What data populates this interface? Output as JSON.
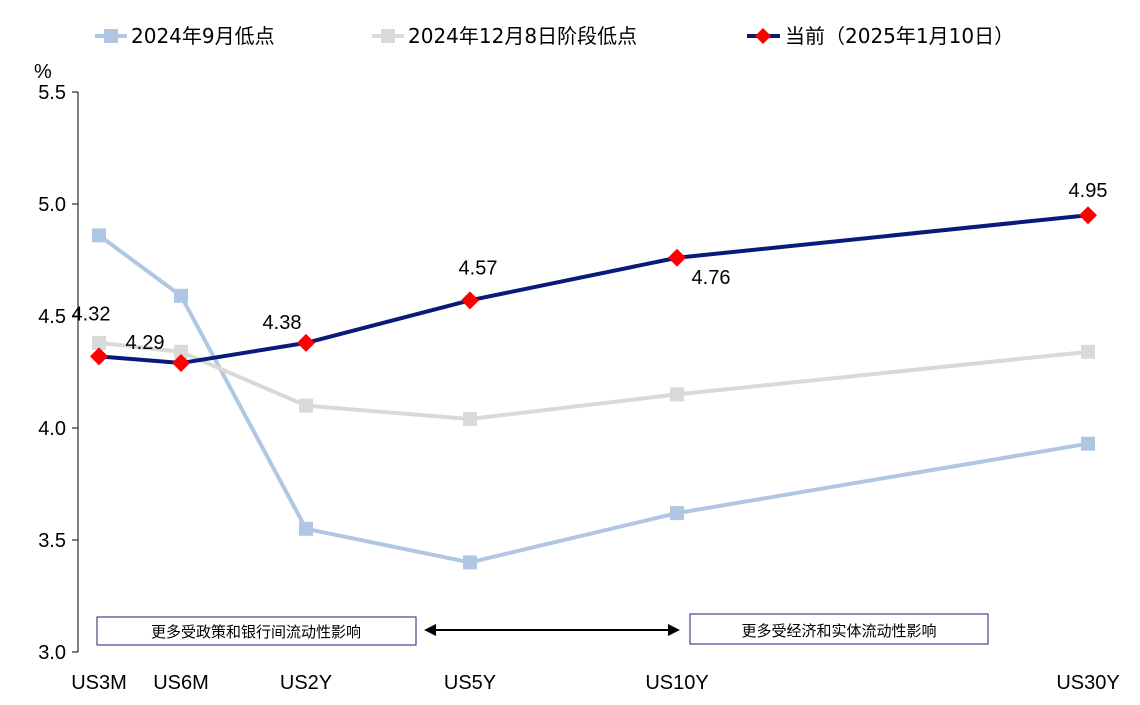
{
  "chart_data": {
    "type": "line",
    "unit_label": "%",
    "categories": [
      "US3M",
      "US6M",
      "US2Y",
      "US5Y",
      "US10Y",
      "US30Y"
    ],
    "ylim": [
      3.0,
      5.5
    ],
    "yticks": [
      "3.0",
      "3.5",
      "4.0",
      "4.5",
      "5.0",
      "5.5"
    ],
    "grid": false,
    "legend_position": "top",
    "series": [
      {
        "name": "2024年9月低点",
        "color": "#B0C7E3",
        "marker": "square",
        "values": [
          4.86,
          4.59,
          3.55,
          3.4,
          3.62,
          3.93
        ]
      },
      {
        "name": "2024年12月8日阶段低点",
        "color": "#D9D9D9",
        "marker": "square",
        "values": [
          4.38,
          4.34,
          4.1,
          4.04,
          4.15,
          4.34
        ]
      },
      {
        "name": "当前（2025年1月10日）",
        "color": "#0A1A7A",
        "marker": "diamond",
        "marker_color": "#FF0000",
        "values": [
          4.32,
          4.29,
          4.38,
          4.57,
          4.76,
          4.95
        ],
        "labels": [
          "4.32",
          "4.29",
          "4.38",
          "4.57",
          "4.76",
          "4.95"
        ]
      }
    ],
    "annotations": [
      "更多受政策和银行间流动性影响",
      "更多受经济和实体流动性影响"
    ]
  }
}
